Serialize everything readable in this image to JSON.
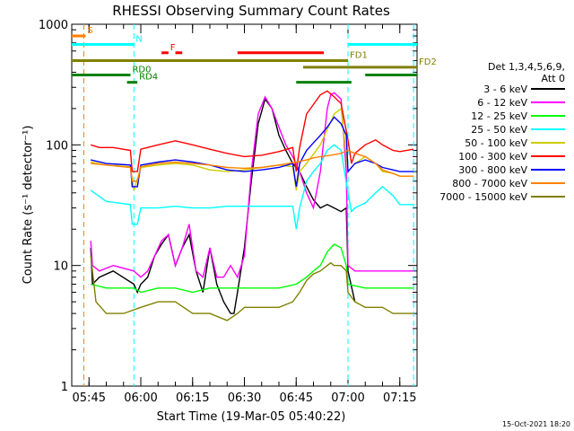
{
  "chart_data": {
    "type": "line",
    "title": "RHESSI Observing Summary Count Rates",
    "xlabel": "Start Time (19-Mar-05 05:40:22)",
    "ylabel": "Count Rate (s⁻¹ detector⁻¹)",
    "x_range_minutes": [
      0,
      100
    ],
    "ylim": [
      1,
      1000
    ],
    "yscale": "log",
    "x_ticks": [
      {
        "t": 5,
        "label": "05:45"
      },
      {
        "t": 20,
        "label": "06:00"
      },
      {
        "t": 35,
        "label": "06:15"
      },
      {
        "t": 50,
        "label": "06:30"
      },
      {
        "t": 65,
        "label": "06:45"
      },
      {
        "t": 80,
        "label": "07:00"
      },
      {
        "t": 95,
        "label": "07:15"
      }
    ],
    "y_ticks": [
      {
        "v": 1,
        "label": "1"
      },
      {
        "v": 10,
        "label": "10"
      },
      {
        "v": 100,
        "label": "100"
      },
      {
        "v": 1000,
        "label": "1000"
      }
    ],
    "legend": {
      "position": "right",
      "header": [
        "Det 1,3,4,5,6,9,",
        "Att 0"
      ],
      "entries": [
        {
          "label": "3 - 6 keV",
          "color": "#000000"
        },
        {
          "label": "6 - 12 keV",
          "color": "#ff00ff"
        },
        {
          "label": "12 - 25 keV",
          "color": "#00ff00"
        },
        {
          "label": "25 - 50 keV",
          "color": "#00ffff"
        },
        {
          "label": "50 - 100 keV",
          "color": "#cccc00"
        },
        {
          "label": "100 - 300 keV",
          "color": "#ff0000"
        },
        {
          "label": "300 - 800 keV",
          "color": "#0000ff"
        },
        {
          "label": "800 - 7000 keV",
          "color": "#ff8000"
        },
        {
          "label": "7000 - 15000 keV",
          "color": "#808000"
        }
      ]
    },
    "flags": [
      {
        "label": "S",
        "color": "#ff8000",
        "y_value": 800,
        "segments": [
          [
            0,
            4
          ]
        ]
      },
      {
        "label": "N",
        "color": "#00ffff",
        "y_value": 680,
        "segments": [
          [
            0,
            18
          ],
          [
            80,
            100
          ]
        ]
      },
      {
        "label": "F",
        "color": "#ff0000",
        "y_value": 580,
        "segments": [
          [
            26,
            28
          ],
          [
            30,
            32
          ],
          [
            48,
            73
          ]
        ]
      },
      {
        "label": "FD1",
        "color": "#808000",
        "y_value": 500,
        "segments": [
          [
            0,
            80
          ]
        ]
      },
      {
        "label": "FD2",
        "color": "#808000",
        "y_value": 440,
        "segments": [
          [
            67,
            100
          ]
        ]
      },
      {
        "label": "RD0",
        "color": "#008000",
        "y_value": 380,
        "segments": [
          [
            0,
            17
          ],
          [
            85,
            100
          ]
        ]
      },
      {
        "label": "RD4",
        "color": "#008000",
        "y_value": 330,
        "segments": [
          [
            16,
            19
          ],
          [
            65,
            81
          ]
        ]
      }
    ],
    "vlines": [
      {
        "t": 3.5,
        "color": "#ff8000",
        "style": "dashed"
      },
      {
        "t": 18,
        "color": "#00ffff",
        "style": "dashed"
      },
      {
        "t": 80,
        "color": "#00ffff",
        "style": "dashed"
      },
      {
        "t": 99,
        "color": "#00ffff",
        "style": "dashed"
      }
    ],
    "series": [
      {
        "name": "3 - 6 keV",
        "color": "#000000",
        "x": [
          5.5,
          6,
          8,
          12,
          18,
          19,
          20,
          22,
          24,
          26,
          28,
          30,
          32,
          34,
          36,
          38,
          40,
          42,
          44,
          46,
          47,
          48,
          50,
          52,
          54,
          56,
          58,
          60,
          62,
          64,
          66,
          68,
          70,
          72,
          74,
          76,
          78,
          79.5,
          80,
          82
        ],
        "y": [
          14,
          7,
          8,
          9,
          7,
          6,
          7,
          8,
          12,
          15,
          18,
          10,
          14,
          18,
          9,
          6,
          14,
          7,
          5,
          4,
          4,
          6,
          14,
          50,
          150,
          240,
          200,
          120,
          90,
          70,
          60,
          45,
          35,
          30,
          32,
          30,
          28,
          30,
          9,
          5
        ]
      },
      {
        "name": "6 - 12 keV",
        "color": "#ff00ff",
        "x": [
          5.5,
          6,
          8,
          12,
          18,
          20,
          22,
          24,
          26,
          28,
          30,
          32,
          34,
          36,
          38,
          40,
          42,
          44,
          46,
          48,
          50,
          52,
          54,
          56,
          58,
          60,
          62,
          64,
          66,
          68,
          70,
          72,
          74,
          75,
          76,
          78,
          79.5,
          80,
          82,
          85,
          90,
          95,
          99
        ],
        "y": [
          16,
          10,
          9,
          10,
          9,
          8,
          9,
          12,
          16,
          18,
          10,
          14,
          22,
          9,
          8,
          14,
          8,
          8,
          10,
          8,
          12,
          60,
          180,
          250,
          200,
          140,
          100,
          80,
          60,
          40,
          30,
          60,
          200,
          260,
          270,
          240,
          60,
          10,
          9,
          9,
          9,
          9,
          9
        ]
      },
      {
        "name": "12 - 25 keV",
        "color": "#00ff00",
        "x": [
          5.5,
          10,
          18,
          20,
          25,
          30,
          35,
          40,
          45,
          50,
          55,
          60,
          65,
          68,
          70,
          72,
          74,
          76,
          78,
          79.5,
          80,
          85,
          90,
          95,
          99
        ],
        "y": [
          7,
          6.5,
          6.5,
          6,
          6.5,
          6.5,
          6,
          6.5,
          6.5,
          6.5,
          6.5,
          6.5,
          7,
          8,
          9,
          10,
          13,
          15,
          14,
          10,
          7,
          6.5,
          6.5,
          6.5,
          6.5
        ]
      },
      {
        "name": "25 - 50 keV",
        "color": "#00ffff",
        "x": [
          5.5,
          10,
          17,
          17.5,
          19,
          20,
          25,
          30,
          35,
          40,
          45,
          50,
          55,
          60,
          64,
          65,
          66,
          68,
          70,
          72,
          74,
          76,
          78,
          80,
          81,
          82,
          85,
          88,
          90,
          93,
          95,
          99
        ],
        "y": [
          42,
          34,
          32,
          22,
          22,
          30,
          30,
          31,
          30,
          30,
          31,
          31,
          31,
          31,
          31,
          20,
          30,
          50,
          60,
          70,
          90,
          100,
          90,
          40,
          28,
          30,
          33,
          40,
          45,
          38,
          32,
          32
        ]
      },
      {
        "name": "50 - 100 keV",
        "color": "#cccc00",
        "x": [
          5.5,
          10,
          17,
          18,
          20,
          25,
          30,
          35,
          40,
          45,
          50,
          55,
          60,
          64,
          65,
          66,
          68,
          72,
          76,
          78,
          80,
          82,
          85,
          88,
          90,
          93,
          95,
          99
        ],
        "y": [
          72,
          68,
          66,
          42,
          65,
          68,
          70,
          68,
          62,
          60,
          62,
          65,
          68,
          66,
          42,
          60,
          70,
          100,
          180,
          200,
          60,
          70,
          80,
          70,
          60,
          58,
          55,
          55
        ]
      },
      {
        "name": "100 - 300 keV",
        "color": "#ff0000",
        "x": [
          5.5,
          8,
          12,
          17,
          17.5,
          19,
          20,
          25,
          30,
          35,
          40,
          45,
          50,
          55,
          60,
          64,
          65,
          66,
          68,
          72,
          74,
          76,
          78,
          80,
          81,
          82,
          85,
          88,
          90,
          93,
          95,
          99
        ],
        "y": [
          100,
          95,
          95,
          90,
          60,
          60,
          92,
          100,
          108,
          100,
          92,
          85,
          80,
          82,
          88,
          95,
          60,
          95,
          180,
          260,
          280,
          250,
          220,
          110,
          70,
          85,
          100,
          110,
          100,
          90,
          88,
          92
        ]
      },
      {
        "name": "300 - 800 keV",
        "color": "#0000ff",
        "x": [
          5.5,
          10,
          17,
          17.5,
          19,
          20,
          25,
          30,
          35,
          40,
          45,
          50,
          55,
          60,
          64,
          65,
          66,
          68,
          72,
          74,
          76,
          78,
          79.5,
          80,
          82,
          85,
          88,
          90,
          93,
          95,
          99
        ],
        "y": [
          75,
          70,
          68,
          45,
          45,
          68,
          72,
          75,
          72,
          68,
          62,
          60,
          62,
          65,
          70,
          45,
          70,
          90,
          120,
          140,
          170,
          150,
          120,
          60,
          70,
          75,
          70,
          65,
          62,
          60,
          60
        ]
      },
      {
        "name": "800 - 7000 keV",
        "color": "#ff8000",
        "x": [
          5.5,
          10,
          17,
          17.5,
          19,
          20,
          25,
          30,
          35,
          40,
          45,
          50,
          55,
          60,
          65,
          68,
          70,
          72,
          75,
          78,
          80,
          82,
          85,
          88,
          90,
          93,
          95,
          99
        ],
        "y": [
          70,
          68,
          65,
          50,
          50,
          66,
          70,
          72,
          70,
          68,
          65,
          64,
          65,
          68,
          72,
          75,
          78,
          80,
          82,
          85,
          90,
          85,
          80,
          70,
          62,
          58,
          55,
          55
        ]
      },
      {
        "name": "7000 - 15000 keV",
        "color": "#808000",
        "x": [
          5.5,
          7,
          10,
          15,
          20,
          25,
          30,
          35,
          40,
          45,
          48,
          50,
          55,
          60,
          64,
          66,
          68,
          70,
          72,
          74,
          75,
          76,
          78,
          79.5,
          80,
          82,
          85,
          88,
          90,
          93,
          95,
          99
        ],
        "y": [
          12,
          5,
          4,
          4,
          4.5,
          5,
          5,
          4,
          4,
          3.5,
          4,
          4.5,
          4.5,
          4.5,
          5,
          6,
          7.5,
          8.5,
          9,
          10,
          10.5,
          10,
          10,
          9,
          6,
          5,
          4.5,
          4.5,
          4.5,
          4,
          4,
          4
        ]
      }
    ],
    "timestamp": "15-Oct-2021 18:20"
  }
}
